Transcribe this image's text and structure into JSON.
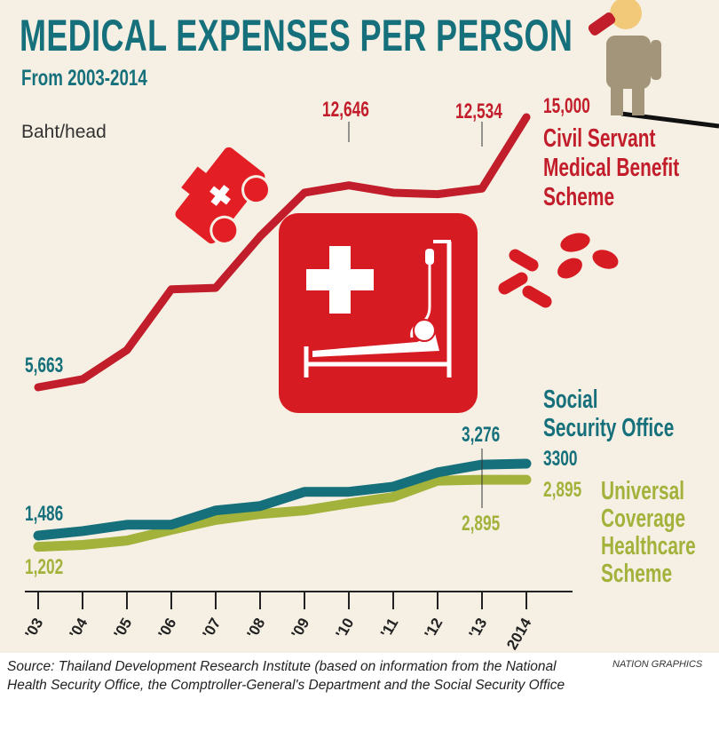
{
  "title": "MEDICAL EXPENSES PER PERSON",
  "subtitle": "From 2003-2014",
  "unit": "Baht/head",
  "source": "Source: Thailand Development Research Institute (based on information from the National Health Security Office, the Comptroller-General's Department and the Social Security Office",
  "credit": "NATION GRAPHICS",
  "colors": {
    "civil": "#c21d2a",
    "social": "#15707b",
    "universal": "#a3b23b",
    "background": "#f6f0e4"
  },
  "chart_data": {
    "type": "line",
    "title": "MEDICAL EXPENSES PER PERSON",
    "subtitle": "From 2003-2014",
    "ylabel": "Baht/head",
    "categories": [
      "'03",
      "'04",
      "'05",
      "'06",
      "'07",
      "'08",
      "'09",
      "'10",
      "'11",
      "'12",
      "'13",
      "2014"
    ],
    "grid": false,
    "series": [
      {
        "name": "Civil Servant Medical Benefit Scheme",
        "color": "#c21d2a",
        "values": [
          5663,
          5940,
          6950,
          9050,
          9100,
          10880,
          12390,
          12646,
          12390,
          12340,
          12534,
          15000
        ],
        "labels": {
          "start": "5,663",
          "peak": "12,646",
          "y13": "12,534",
          "end": "15,000"
        }
      },
      {
        "name": "Social Security Office",
        "color": "#15707b",
        "values": [
          1486,
          1600,
          1760,
          1760,
          2120,
          2230,
          2590,
          2590,
          2720,
          3080,
          3276,
          3300
        ],
        "labels": {
          "start": "1,486",
          "y13": "3,276",
          "end": "3300"
        }
      },
      {
        "name": "Universal Coverage Healthcare Scheme",
        "color": "#a3b23b",
        "values": [
          1202,
          1250,
          1360,
          1630,
          1880,
          2030,
          2120,
          2300,
          2460,
          2870,
          2895,
          2895
        ],
        "labels": {
          "start": "1,202",
          "y13": "2,895",
          "end": "2,895"
        }
      }
    ]
  },
  "legend": {
    "civil": [
      "Civil Servant",
      "Medical Benefit",
      "Scheme"
    ],
    "social": [
      "Social",
      "Security Office"
    ],
    "universal": [
      "Universal",
      "Coverage",
      "Healthcare",
      "Scheme"
    ]
  }
}
